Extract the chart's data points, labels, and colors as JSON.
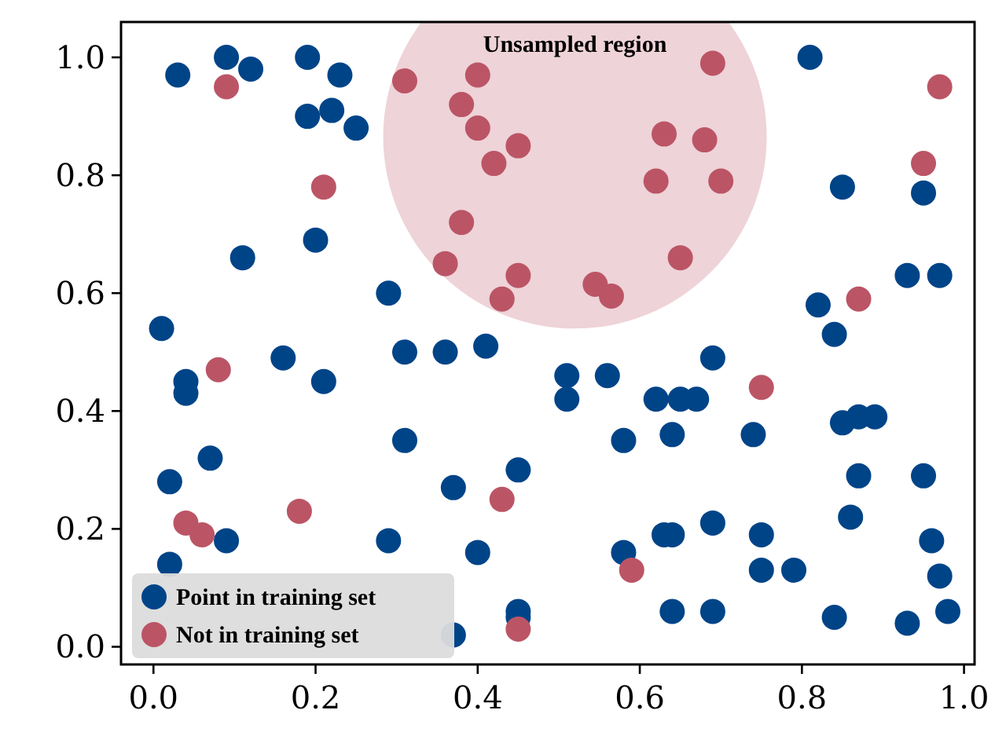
{
  "chart_data": {
    "type": "scatter",
    "annotations": [
      "Unsampled region"
    ],
    "xlim": [
      -0.04,
      1.013
    ],
    "ylim": [
      -0.03,
      1.06
    ],
    "xticks": [
      {
        "value": 0,
        "label": "0.0"
      },
      0.2,
      0.4,
      0.6,
      0.8,
      {
        "value": 1,
        "label": "1.0"
      }
    ],
    "yticks": [
      {
        "value": 0,
        "label": "0.0"
      },
      0.2,
      0.4,
      0.6,
      0.8,
      {
        "value": 1,
        "label": "1.0"
      }
    ],
    "legend": "bottom left",
    "marker": "circle",
    "grid": false,
    "series": [
      {
        "name": "Point in training set",
        "color": "#004488",
        "x": [
          0.03,
          0.09,
          0.12,
          0.19,
          0.23,
          0.19,
          0.22,
          0.25,
          0.11,
          0.2,
          0.01,
          0.29,
          0.04,
          0.04,
          0.16,
          0.21,
          0.31,
          0.36,
          0.41,
          0.51,
          0.56,
          0.51,
          0.62,
          0.65,
          0.67,
          0.58,
          0.64,
          0.74,
          0.69,
          0.84,
          0.82,
          0.02,
          0.07,
          0.31,
          0.37,
          0.45,
          0.02,
          0.09,
          0.29,
          0.4,
          0.45,
          0.45,
          0.37,
          0.58,
          0.63,
          0.64,
          0.69,
          0.75,
          0.75,
          0.79,
          0.64,
          0.69,
          0.84,
          0.93,
          0.98,
          0.97,
          0.96,
          0.95,
          0.86,
          0.87,
          0.85,
          0.87,
          0.89,
          0.81,
          0.85,
          0.95,
          0.93,
          0.97
        ],
        "values": [
          0.97,
          1.0,
          0.98,
          1.0,
          0.97,
          0.9,
          0.91,
          0.88,
          0.66,
          0.69,
          0.54,
          0.6,
          0.45,
          0.43,
          0.49,
          0.45,
          0.5,
          0.5,
          0.51,
          0.46,
          0.46,
          0.42,
          0.42,
          0.42,
          0.42,
          0.35,
          0.36,
          0.36,
          0.49,
          0.53,
          0.58,
          0.28,
          0.32,
          0.35,
          0.27,
          0.3,
          0.14,
          0.18,
          0.18,
          0.16,
          0.06,
          0.05,
          0.02,
          0.16,
          0.19,
          0.19,
          0.21,
          0.19,
          0.13,
          0.13,
          0.06,
          0.06,
          0.05,
          0.04,
          0.06,
          0.12,
          0.18,
          0.29,
          0.22,
          0.29,
          0.38,
          0.39,
          0.39,
          1.0,
          0.78,
          0.77,
          0.63,
          0.63
        ]
      },
      {
        "name": "Not in training set",
        "color": "#bb5566",
        "x": [
          0.09,
          0.21,
          0.31,
          0.4,
          0.38,
          0.4,
          0.45,
          0.42,
          0.38,
          0.36,
          0.45,
          0.43,
          0.69,
          0.63,
          0.68,
          0.62,
          0.7,
          0.65,
          0.545,
          0.565,
          0.97,
          0.95,
          0.08,
          0.04,
          0.06,
          0.18,
          0.43,
          0.45,
          0.75,
          0.59,
          0.87
        ],
        "values": [
          0.95,
          0.78,
          0.96,
          0.97,
          0.92,
          0.88,
          0.85,
          0.82,
          0.72,
          0.65,
          0.63,
          0.59,
          0.99,
          0.87,
          0.86,
          0.79,
          0.79,
          0.66,
          0.615,
          0.595,
          0.95,
          0.82,
          0.47,
          0.21,
          0.19,
          0.23,
          0.25,
          0.03,
          0.44,
          0.13,
          0.59
        ]
      }
    ]
  }
}
